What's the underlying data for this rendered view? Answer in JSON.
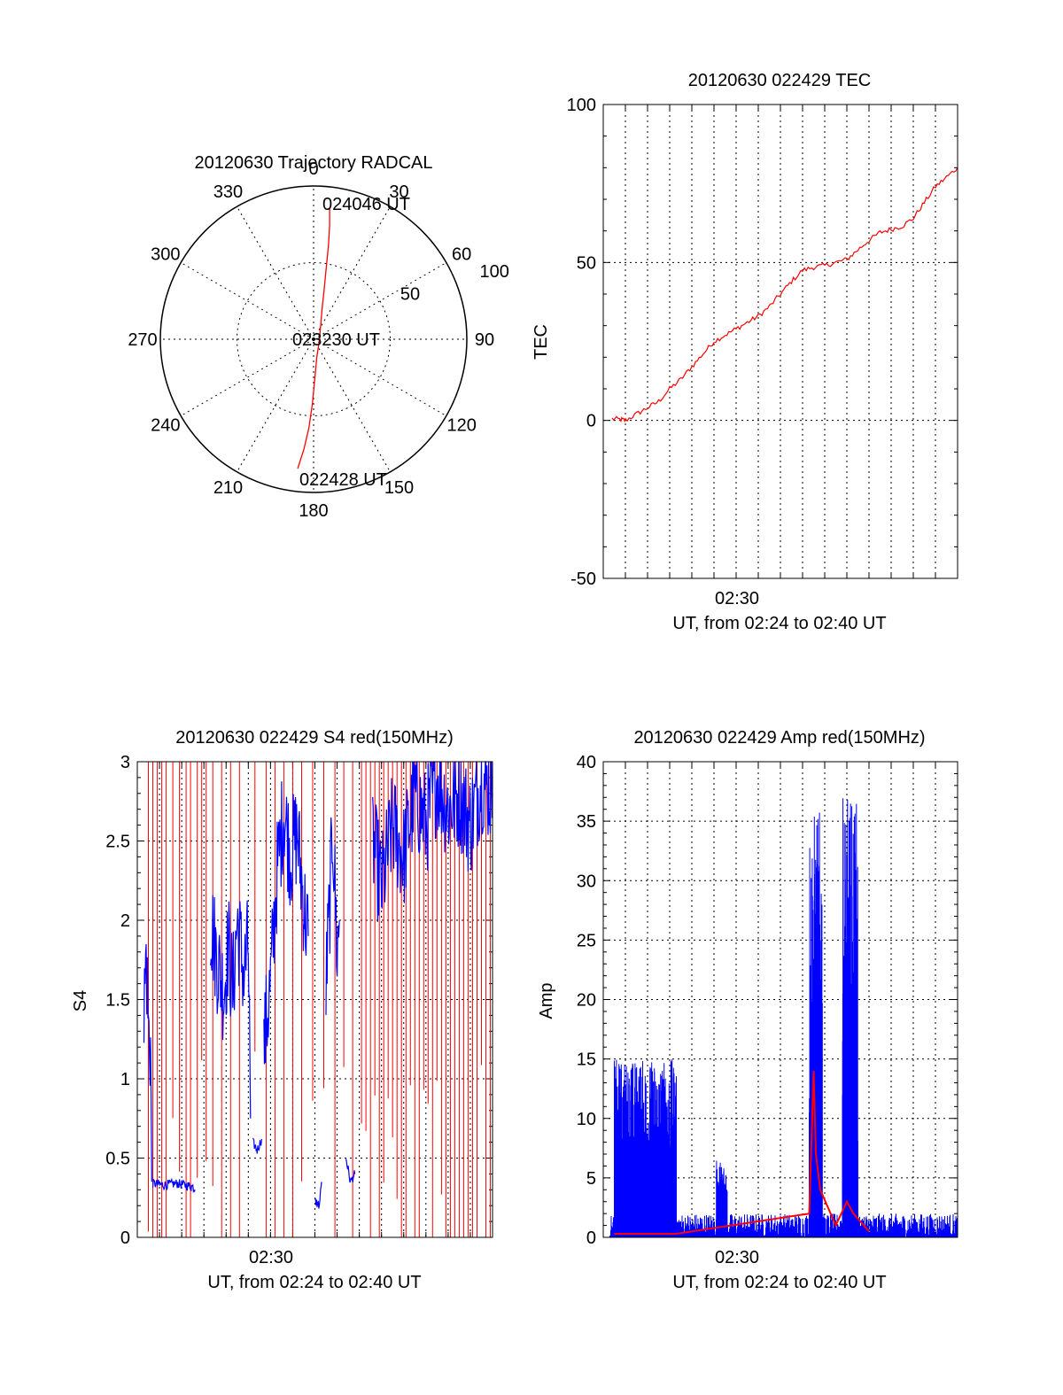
{
  "figure": {
    "colors": {
      "red": "#ff0000",
      "blue": "#0000ff",
      "axis": "#000000"
    },
    "x_axis_common": {
      "range": [
        "02:24",
        "02:40"
      ],
      "tick_label": "02:30",
      "xlabel": "UT, from 02:24 to 02:40 UT"
    }
  },
  "chart_data": [
    {
      "id": "trajectory",
      "type": "polar",
      "title": "20120630 Trajectory RADCAL",
      "azimuth_labels": [
        "0",
        "30",
        "60",
        "90",
        "120",
        "150",
        "180",
        "210",
        "240",
        "270",
        "300",
        "330"
      ],
      "azimuths_deg": [
        0,
        30,
        60,
        90,
        120,
        150,
        180,
        210,
        240,
        270,
        300,
        330
      ],
      "radial_labels": [
        "50",
        "100"
      ],
      "radial_values": [
        50,
        100
      ],
      "radial_max": 100,
      "grid": true,
      "annotations": {
        "start": "022428 UT",
        "mid": "023230 UT",
        "end": "024046 UT"
      },
      "series": [
        {
          "color": "red",
          "points_az_zenith": [
            [
              187,
              85
            ],
            [
              185,
              72
            ],
            [
              183,
              58
            ],
            [
              181,
              42
            ],
            [
              178,
              25
            ],
            [
              170,
              12
            ],
            [
              115,
              4
            ],
            [
              30,
              9
            ],
            [
              16,
              20
            ],
            [
              12,
              33
            ],
            [
              10,
              48
            ],
            [
              9,
              62
            ],
            [
              8,
              75
            ],
            [
              7,
              86
            ]
          ]
        }
      ]
    },
    {
      "id": "tec",
      "type": "line",
      "title": "20120630 022429 TEC",
      "xlabel": "UT, from 02:24 to 02:40 UT",
      "ylabel": "TEC",
      "xlim_min": [
        24.0,
        40.0
      ],
      "ylim": [
        -50,
        100
      ],
      "yticks": [
        "-50",
        "0",
        "50",
        "100"
      ],
      "xtick_label": "02:30",
      "grid": true,
      "series": [
        {
          "color": "red",
          "points_min_tec": [
            [
              24.4,
              0.5
            ],
            [
              24.8,
              0.3
            ],
            [
              25.0,
              0.0
            ],
            [
              25.5,
              2
            ],
            [
              26.0,
              4
            ],
            [
              26.5,
              6
            ],
            [
              27.0,
              10
            ],
            [
              27.5,
              13
            ],
            [
              28.0,
              17
            ],
            [
              28.5,
              21
            ],
            [
              29.0,
              25
            ],
            [
              29.5,
              27
            ],
            [
              30.0,
              29
            ],
            [
              30.5,
              31
            ],
            [
              31.0,
              33
            ],
            [
              31.5,
              36
            ],
            [
              32.0,
              40
            ],
            [
              32.5,
              44
            ],
            [
              33.0,
              47.5
            ],
            [
              33.5,
              48.5
            ],
            [
              34.0,
              49
            ],
            [
              34.5,
              50
            ],
            [
              35.0,
              51
            ],
            [
              35.5,
              54
            ],
            [
              36.0,
              57
            ],
            [
              36.5,
              59.5
            ],
            [
              37.0,
              60.5
            ],
            [
              37.5,
              61.5
            ],
            [
              38.0,
              64
            ],
            [
              38.5,
              69
            ],
            [
              39.0,
              74
            ],
            [
              39.5,
              77
            ],
            [
              40.0,
              80
            ]
          ]
        }
      ]
    },
    {
      "id": "s4",
      "type": "line",
      "title": "20120630 022429 S4 red(150MHz)",
      "xlabel": "UT, from 02:24 to 02:40 UT",
      "ylabel": "S4",
      "xlim_min": [
        24.0,
        40.0
      ],
      "ylim": [
        0,
        3
      ],
      "yticks": [
        "0",
        "0.5",
        "1",
        "1.5",
        "2",
        "2.5",
        "3"
      ],
      "xtick_label": "02:30",
      "grid": true,
      "series": [
        {
          "color": "blue",
          "segments_min_s4": [
            [
              [
                24.3,
                1.4
              ],
              [
                24.4,
                1.8
              ],
              [
                24.5,
                1.3
              ],
              [
                24.6,
                1.2
              ],
              [
                24.65,
                0.35
              ]
            ],
            [
              [
                24.7,
                0.34
              ],
              [
                25.2,
                0.33
              ],
              [
                25.8,
                0.34
              ],
              [
                26.5,
                0.32
              ],
              [
                26.6,
                0.3
              ]
            ],
            [
              [
                27.3,
                2.0
              ],
              [
                27.6,
                1.75
              ],
              [
                27.9,
                1.55
              ],
              [
                28.1,
                1.85
              ],
              [
                28.3,
                1.55
              ],
              [
                28.5,
                2.0
              ],
              [
                28.8,
                1.65
              ],
              [
                29.0,
                1.85
              ],
              [
                29.1,
                0.75
              ]
            ],
            [
              [
                29.2,
                0.6
              ],
              [
                29.4,
                0.55
              ],
              [
                29.6,
                0.62
              ]
            ],
            [
              [
                29.7,
                1.2
              ],
              [
                30.0,
                1.6
              ],
              [
                30.3,
                2.3
              ],
              [
                30.6,
                2.7
              ],
              [
                30.9,
                2.4
              ],
              [
                31.2,
                2.55
              ],
              [
                31.5,
                2.1
              ],
              [
                31.7,
                1.9
              ]
            ],
            [
              [
                32.0,
                0.23
              ],
              [
                32.2,
                0.2
              ],
              [
                32.3,
                0.35
              ]
            ],
            [
              [
                32.5,
                1.6
              ],
              [
                32.7,
                2.2
              ],
              [
                32.8,
                2.6
              ],
              [
                33.0,
                1.8
              ],
              [
                33.1,
                2.0
              ]
            ],
            [
              [
                33.4,
                0.5
              ],
              [
                33.6,
                0.35
              ],
              [
                33.8,
                0.4
              ]
            ],
            [
              [
                34.6,
                2.5
              ],
              [
                35.0,
                2.2
              ],
              [
                35.5,
                2.6
              ],
              [
                36.0,
                2.4
              ],
              [
                36.5,
                2.8
              ],
              [
                37.0,
                2.6
              ],
              [
                37.5,
                2.9
              ],
              [
                38.0,
                2.7
              ],
              [
                38.5,
                2.8
              ],
              [
                39.0,
                2.6
              ],
              [
                39.5,
                2.9
              ],
              [
                40.0,
                2.8
              ]
            ]
          ]
        },
        {
          "color": "red",
          "spikes_min": [
            24.5,
            24.7,
            24.9,
            25.1,
            25.3,
            25.6,
            25.9,
            26.2,
            26.4,
            26.7,
            26.9,
            27.1,
            27.4,
            27.8,
            28.2,
            28.6,
            29.3,
            29.8,
            30.2,
            30.6,
            31.0,
            31.4,
            31.9,
            32.4,
            32.9,
            33.3,
            33.7,
            34.1,
            34.3,
            34.5,
            34.7,
            34.9,
            35.1,
            35.3,
            35.5,
            35.7,
            35.9,
            36.1,
            36.3,
            36.5,
            36.7,
            36.9,
            37.1,
            37.3,
            37.5,
            37.7,
            37.9,
            38.1,
            38.3,
            38.5,
            38.7,
            38.9,
            39.1,
            39.3,
            39.5,
            39.7,
            39.9
          ]
        }
      ]
    },
    {
      "id": "amp",
      "type": "line",
      "title": "20120630 022429 Amp red(150MHz)",
      "xlabel": "UT, from 02:24 to 02:40 UT",
      "ylabel": "Amp",
      "xlim_min": [
        24.0,
        40.0
      ],
      "ylim": [
        0,
        40
      ],
      "yticks": [
        "0",
        "5",
        "10",
        "15",
        "20",
        "25",
        "30",
        "35",
        "40"
      ],
      "xtick_label": "02:30",
      "grid": true,
      "series": [
        {
          "color": "blue",
          "bursts": [
            {
              "x_start": 24.5,
              "x_end": 27.3,
              "max": 15,
              "min": 2
            },
            {
              "x_start": 29.1,
              "x_end": 29.6,
              "max": 6.5,
              "min": 1
            },
            {
              "x_start": 33.3,
              "x_end": 33.9,
              "max": 36,
              "min": 3
            },
            {
              "x_start": 34.8,
              "x_end": 35.5,
              "max": 37,
              "min": 3
            }
          ],
          "baseline_max": 2
        },
        {
          "color": "red",
          "points_min_amp": [
            [
              24.5,
              0.3
            ],
            [
              25.5,
              0.3
            ],
            [
              26.5,
              0.3
            ],
            [
              27.3,
              0.3
            ],
            [
              33.3,
              2
            ],
            [
              33.5,
              14
            ],
            [
              33.6,
              7
            ],
            [
              33.8,
              4
            ],
            [
              34.5,
              1
            ],
            [
              35.0,
              3
            ],
            [
              35.3,
              2
            ],
            [
              36.0,
              0.5
            ]
          ]
        }
      ]
    }
  ]
}
